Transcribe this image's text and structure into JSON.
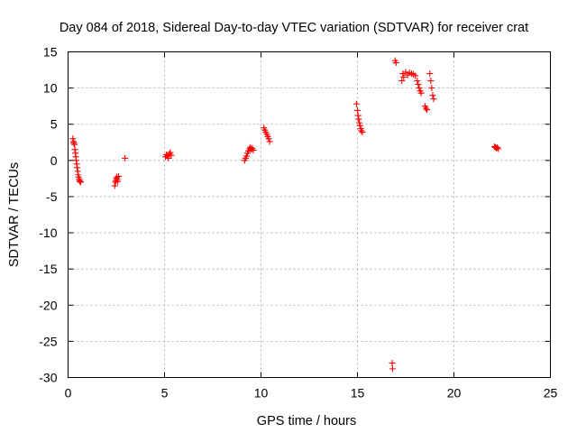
{
  "chart_data": {
    "type": "scatter",
    "title": "Day 084 of 2018, Sidereal Day-to-day VTEC variation (SDTVAR) for receiver crat",
    "xlabel": "GPS time / hours",
    "ylabel": "SDTVAR / TECUs",
    "xlim": [
      0,
      25
    ],
    "ylim": [
      -30,
      15
    ],
    "xticks": [
      0,
      5,
      10,
      15,
      20,
      25
    ],
    "yticks": [
      15,
      10,
      5,
      0,
      -5,
      -10,
      -15,
      -20,
      -25,
      -30
    ],
    "grid": true,
    "marker": "+",
    "color": "#ff0000",
    "series": [
      {
        "name": "SDTVAR",
        "x": [
          0.25,
          0.28,
          0.3,
          0.33,
          0.35,
          0.38,
          0.4,
          0.42,
          0.45,
          0.47,
          0.5,
          0.52,
          0.55,
          0.58,
          0.6,
          0.62,
          0.65,
          2.42,
          2.45,
          2.48,
          2.5,
          2.53,
          2.55,
          2.58,
          2.62,
          2.95,
          5.05,
          5.1,
          5.15,
          5.2,
          5.25,
          5.3,
          5.35,
          9.15,
          9.2,
          9.25,
          9.3,
          9.35,
          9.4,
          9.45,
          9.5,
          9.55,
          9.6,
          10.15,
          10.2,
          10.25,
          10.3,
          10.35,
          10.4,
          10.45,
          14.95,
          15.0,
          15.03,
          15.06,
          15.1,
          15.13,
          15.17,
          15.2,
          15.25,
          16.8,
          16.82,
          16.95,
          17.0,
          17.3,
          17.35,
          17.4,
          17.5,
          17.6,
          17.7,
          17.8,
          17.9,
          18.0,
          18.1,
          18.15,
          18.2,
          18.25,
          18.3,
          18.5,
          18.55,
          18.6,
          18.75,
          18.8,
          18.85,
          18.9,
          18.95,
          22.1,
          22.15,
          22.2,
          22.25,
          22.3
        ],
        "y": [
          3.0,
          2.6,
          2.4,
          2.2,
          1.5,
          1.0,
          0.5,
          0.0,
          -0.5,
          -1.0,
          -1.5,
          -2.0,
          -2.3,
          -2.6,
          -2.8,
          -2.9,
          -3.0,
          -3.5,
          -3.0,
          -2.8,
          -2.5,
          -2.3,
          -2.6,
          -2.9,
          -2.2,
          0.3,
          0.5,
          0.8,
          0.6,
          0.3,
          0.9,
          1.1,
          0.7,
          0.0,
          0.3,
          0.6,
          1.0,
          1.3,
          1.6,
          1.8,
          1.5,
          1.7,
          1.4,
          4.5,
          4.2,
          3.9,
          3.6,
          3.3,
          3.0,
          2.6,
          7.8,
          6.9,
          6.2,
          5.7,
          5.2,
          4.8,
          4.4,
          4.1,
          3.9,
          -28.0,
          -28.8,
          13.8,
          13.5,
          11.0,
          12.0,
          11.5,
          12.2,
          11.8,
          12.1,
          12.0,
          11.9,
          11.7,
          11.0,
          10.5,
          10.0,
          9.6,
          9.3,
          7.5,
          7.2,
          7.0,
          12.0,
          11.0,
          10.0,
          9.0,
          8.5,
          1.9,
          1.8,
          1.7,
          1.8,
          1.6
        ]
      }
    ]
  }
}
